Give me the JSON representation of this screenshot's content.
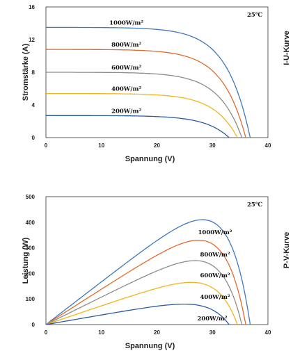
{
  "colors": {
    "1000W/m²": "#3f78bf",
    "800W/m²": "#e06a2c",
    "600W/m²": "#8c8c8c",
    "400W/m²": "#f0b51a",
    "200W/m²": "#2c5aa0"
  },
  "chart_data": [
    {
      "type": "line",
      "title": "",
      "side_title": "I-U-Kurve",
      "annotation": "25℃",
      "xlabel": "Spannung (V)",
      "ylabel": "Stromstärke (A)",
      "xlim": [
        0,
        40
      ],
      "ylim": [
        0,
        16
      ],
      "xticks": [
        "0",
        "10",
        "20",
        "30",
        "40"
      ],
      "yticks": [
        "0",
        "4",
        "8",
        "12",
        "16"
      ],
      "grid": false,
      "series": [
        {
          "name": "1000W/m²",
          "isc": 13.5,
          "voc": 36.8,
          "knee_v": 30.0,
          "values": [
            [
              0,
              13.5
            ],
            [
              10,
              13.48
            ],
            [
              20,
              13.42
            ],
            [
              28,
              13.2
            ],
            [
              30,
              12.8
            ],
            [
              32,
              11.5
            ],
            [
              34,
              8.8
            ],
            [
              35.5,
              5.5
            ],
            [
              36.8,
              0
            ]
          ]
        },
        {
          "name": "800W/m²",
          "isc": 10.8,
          "voc": 36.0,
          "knee_v": 29.5,
          "values": [
            [
              0,
              10.8
            ],
            [
              10,
              10.78
            ],
            [
              20,
              10.72
            ],
            [
              28,
              10.5
            ],
            [
              30,
              10.1
            ],
            [
              32,
              8.8
            ],
            [
              33.8,
              6.0
            ],
            [
              35,
              3.2
            ],
            [
              36.0,
              0
            ]
          ]
        },
        {
          "name": "600W/m²",
          "isc": 8.0,
          "voc": 35.3,
          "knee_v": 29.0,
          "values": [
            [
              0,
              8.0
            ],
            [
              10,
              7.99
            ],
            [
              20,
              7.95
            ],
            [
              28,
              7.7
            ],
            [
              30,
              7.2
            ],
            [
              31.8,
              6.0
            ],
            [
              33.5,
              3.8
            ],
            [
              34.5,
              1.9
            ],
            [
              35.3,
              0
            ]
          ]
        },
        {
          "name": "400W/m²",
          "isc": 5.4,
          "voc": 34.5,
          "knee_v": 28.5,
          "values": [
            [
              0,
              5.4
            ],
            [
              10,
              5.39
            ],
            [
              20,
              5.36
            ],
            [
              28,
              5.15
            ],
            [
              30,
              4.6
            ],
            [
              31.5,
              3.6
            ],
            [
              33,
              2.2
            ],
            [
              34,
              0.9
            ],
            [
              34.5,
              0
            ]
          ]
        },
        {
          "name": "200W/m²",
          "isc": 2.7,
          "voc": 33.0,
          "knee_v": 27.5,
          "values": [
            [
              0,
              2.7
            ],
            [
              10,
              2.69
            ],
            [
              20,
              2.67
            ],
            [
              27,
              2.55
            ],
            [
              29,
              2.3
            ],
            [
              30.5,
              1.8
            ],
            [
              31.8,
              1.0
            ],
            [
              32.5,
              0.45
            ],
            [
              33.0,
              0
            ]
          ]
        }
      ]
    },
    {
      "type": "line",
      "title": "",
      "side_title": "P-V-Kurve",
      "annotation": "25℃",
      "xlabel": "Spannung (V)",
      "ylabel": "Leistung (W)",
      "xlim": [
        0,
        40
      ],
      "ylim": [
        0,
        500
      ],
      "xticks": [
        "0",
        "10",
        "20",
        "30",
        "40"
      ],
      "yticks": [
        "0",
        "100",
        "200",
        "300",
        "400",
        "500"
      ],
      "grid": false,
      "series": [
        {
          "name": "1000W/m²",
          "peak_v": 30.5,
          "peak_p": 410,
          "voc": 36.8,
          "values": [
            [
              0,
              0
            ],
            [
              10,
              135
            ],
            [
              20,
              270
            ],
            [
              28,
              375
            ],
            [
              30.5,
              410
            ],
            [
              32,
              390
            ],
            [
              34,
              300
            ],
            [
              35.5,
              195
            ],
            [
              36.8,
              0
            ]
          ]
        },
        {
          "name": "800W/m²",
          "peak_v": 30.0,
          "peak_p": 330,
          "voc": 36.0,
          "values": [
            [
              0,
              0
            ],
            [
              10,
              108
            ],
            [
              20,
              216
            ],
            [
              28,
              300
            ],
            [
              30,
              330
            ],
            [
              32,
              300
            ],
            [
              33.8,
              220
            ],
            [
              35,
              115
            ],
            [
              36.0,
              0
            ]
          ]
        },
        {
          "name": "600W/m²",
          "peak_v": 29.5,
          "peak_p": 250,
          "voc": 35.3,
          "values": [
            [
              0,
              0
            ],
            [
              10,
              80
            ],
            [
              20,
              160
            ],
            [
              28,
              225
            ],
            [
              29.5,
              250
            ],
            [
              31.8,
              210
            ],
            [
              33.5,
              130
            ],
            [
              34.5,
              65
            ],
            [
              35.3,
              0
            ]
          ]
        },
        {
          "name": "400W/m²",
          "peak_v": 29.0,
          "peak_p": 165,
          "voc": 34.5,
          "values": [
            [
              0,
              0
            ],
            [
              10,
              54
            ],
            [
              20,
              108
            ],
            [
              28,
              150
            ],
            [
              29,
              165
            ],
            [
              31.5,
              120
            ],
            [
              33,
              70
            ],
            [
              34,
              30
            ],
            [
              34.5,
              0
            ]
          ]
        },
        {
          "name": "200W/m²",
          "peak_v": 28.0,
          "peak_p": 80,
          "voc": 33.0,
          "values": [
            [
              0,
              0
            ],
            [
              10,
              27
            ],
            [
              20,
              53
            ],
            [
              27,
              72
            ],
            [
              28,
              80
            ],
            [
              30.5,
              60
            ],
            [
              31.8,
              35
            ],
            [
              32.5,
              15
            ],
            [
              33.0,
              0
            ]
          ]
        }
      ]
    }
  ]
}
